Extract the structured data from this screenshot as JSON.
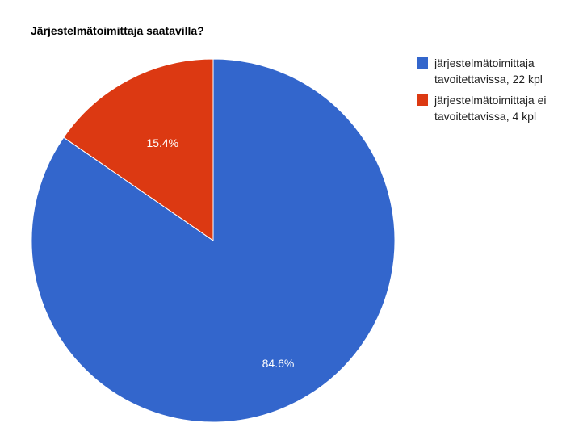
{
  "chart_data": {
    "type": "pie",
    "title": "Järjestelmätoimittaja saatavilla?",
    "slices": [
      {
        "label": "järjestelmätoimittaja tavoitettavissa, 22 kpl",
        "value": 22,
        "percent_label": "84.6%",
        "color": "#3366cc"
      },
      {
        "label": "järjestelmätoimittaja ei tavoitettavissa, 4 kpl",
        "value": 4,
        "percent_label": "15.4%",
        "color": "#dc3912"
      }
    ],
    "legend_position": "right"
  }
}
